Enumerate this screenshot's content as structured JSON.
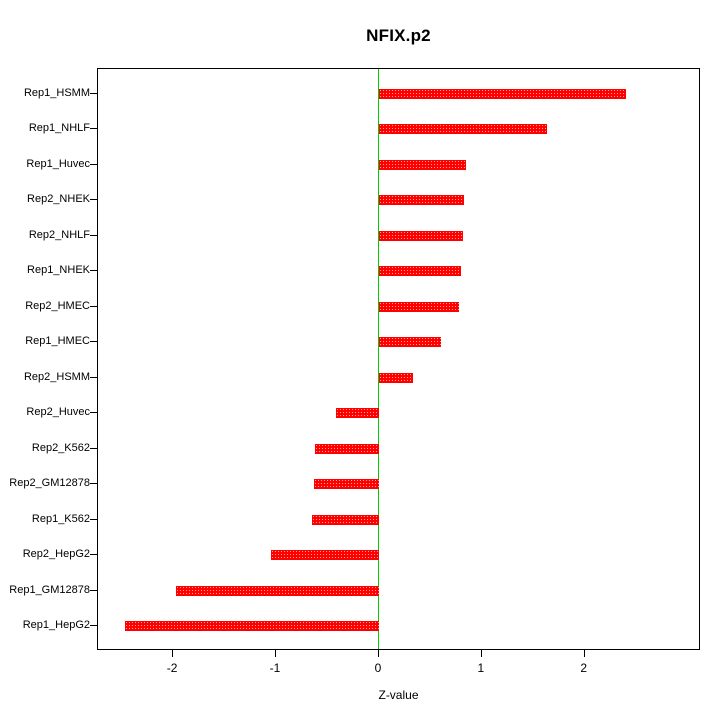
{
  "chart_data": {
    "type": "bar",
    "orientation": "horizontal",
    "title": "NFIX.p2",
    "xlabel": "Z-value",
    "ylabel": "",
    "categories": [
      "Rep1_HSMM",
      "Rep1_NHLF",
      "Rep1_Huvec",
      "Rep2_NHEK",
      "Rep2_NHLF",
      "Rep1_NHEK",
      "Rep2_HMEC",
      "Rep1_HMEC",
      "Rep2_HSMM",
      "Rep2_Huvec",
      "Rep2_K562",
      "Rep2_GM12878",
      "Rep1_K562",
      "Rep2_HepG2",
      "Rep1_GM12878",
      "Rep1_HepG2"
    ],
    "values": [
      2.4,
      1.63,
      0.85,
      0.83,
      0.82,
      0.8,
      0.78,
      0.6,
      0.33,
      -0.42,
      -0.62,
      -0.63,
      -0.65,
      -1.05,
      -1.97,
      -2.47
    ],
    "x_ticks": [
      -2,
      -1,
      0,
      1,
      2
    ],
    "xlim": [
      -2.73,
      3.13
    ],
    "bar_color": "#ff0000",
    "zero_line_color": "#00cc00",
    "grid": false,
    "legend": false
  }
}
